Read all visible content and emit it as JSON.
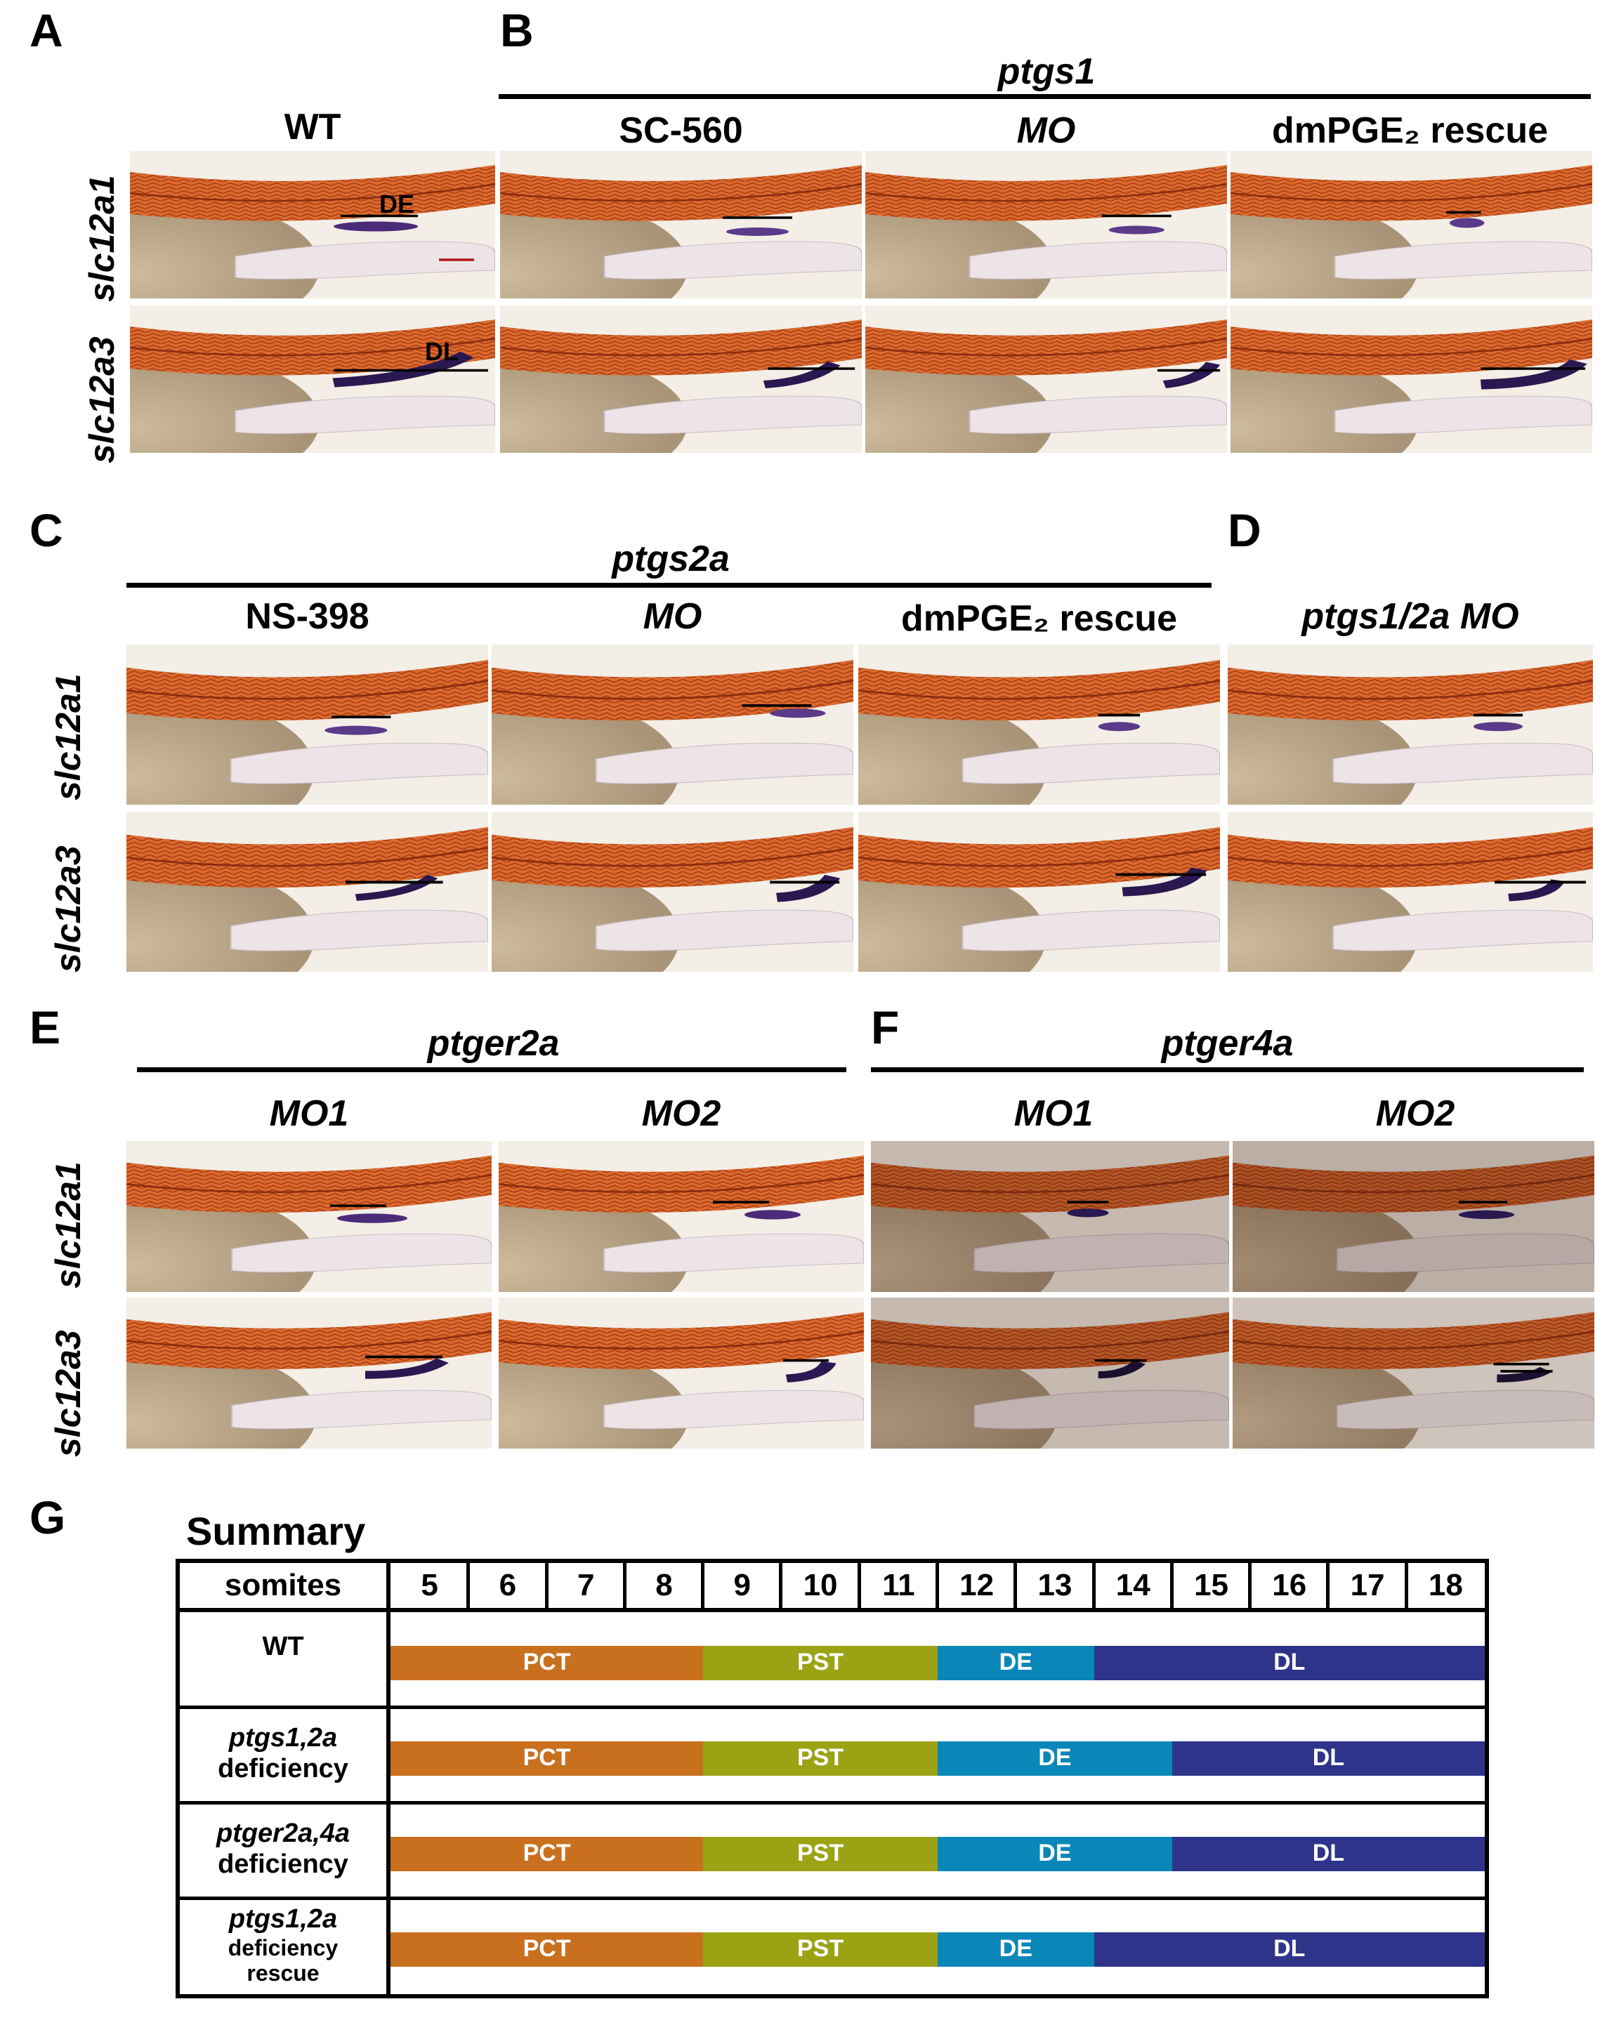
{
  "panel_letters": {
    "a": "A",
    "b": "B",
    "c": "C",
    "d": "D",
    "e": "E",
    "f": "F",
    "g": "G"
  },
  "row_labels": {
    "slc12a1": "slc12a1",
    "slc12a3": "slc12a3"
  },
  "panel_a": {
    "column": "WT",
    "marker_de": "DE",
    "marker_dl": "DL"
  },
  "panel_b": {
    "gene": "ptgs1",
    "columns": [
      "SC-560",
      "MO",
      "dmPGE₂ rescue"
    ]
  },
  "panel_c": {
    "gene": "ptgs2a",
    "columns": [
      "NS-398",
      "MO",
      "dmPGE₂ rescue"
    ]
  },
  "panel_d": {
    "column": "ptgs1/2a MO"
  },
  "panel_e": {
    "gene": "ptger2a",
    "columns": [
      "MO1",
      "MO2"
    ]
  },
  "panel_f": {
    "gene": "ptger4a",
    "columns": [
      "MO1",
      "MO2"
    ]
  },
  "summary": {
    "title": "Summary",
    "header_label": "somites",
    "somites": [
      "5",
      "6",
      "7",
      "8",
      "9",
      "10",
      "11",
      "12",
      "13",
      "14",
      "15",
      "16",
      "17",
      "18"
    ],
    "segment_colors": {
      "PCT": "#c8701e",
      "PST": "#9ba315",
      "DE": "#0a86b8",
      "DL": "#2e3489"
    },
    "rows": [
      {
        "name_line1": "WT",
        "name_line2": "",
        "name_line3": "",
        "segments": [
          {
            "label": "PCT",
            "start": 5,
            "end": 8
          },
          {
            "label": "PST",
            "start": 9,
            "end": 11
          },
          {
            "label": "DE",
            "start": 12,
            "end": 13
          },
          {
            "label": "DL",
            "start": 14,
            "end": 18
          }
        ]
      },
      {
        "name_line1": "ptgs1,2a",
        "name_line2": "deficiency",
        "name_line3": "",
        "segments": [
          {
            "label": "PCT",
            "start": 5,
            "end": 8
          },
          {
            "label": "PST",
            "start": 9,
            "end": 11
          },
          {
            "label": "DE",
            "start": 12,
            "end": 14
          },
          {
            "label": "DL",
            "start": 15,
            "end": 18
          }
        ]
      },
      {
        "name_line1": "ptger2a,4a",
        "name_line2": "deficiency",
        "name_line3": "",
        "segments": [
          {
            "label": "PCT",
            "start": 5,
            "end": 8
          },
          {
            "label": "PST",
            "start": 9,
            "end": 11
          },
          {
            "label": "DE",
            "start": 12,
            "end": 14
          },
          {
            "label": "DL",
            "start": 15,
            "end": 18
          }
        ]
      },
      {
        "name_line1": "ptgs1,2a",
        "name_line2": "deficiency",
        "name_line3": "rescue",
        "segments": [
          {
            "label": "PCT",
            "start": 5,
            "end": 8
          },
          {
            "label": "PST",
            "start": 9,
            "end": 11
          },
          {
            "label": "DE",
            "start": 12,
            "end": 13
          },
          {
            "label": "DL",
            "start": 14,
            "end": 18
          }
        ]
      }
    ]
  }
}
